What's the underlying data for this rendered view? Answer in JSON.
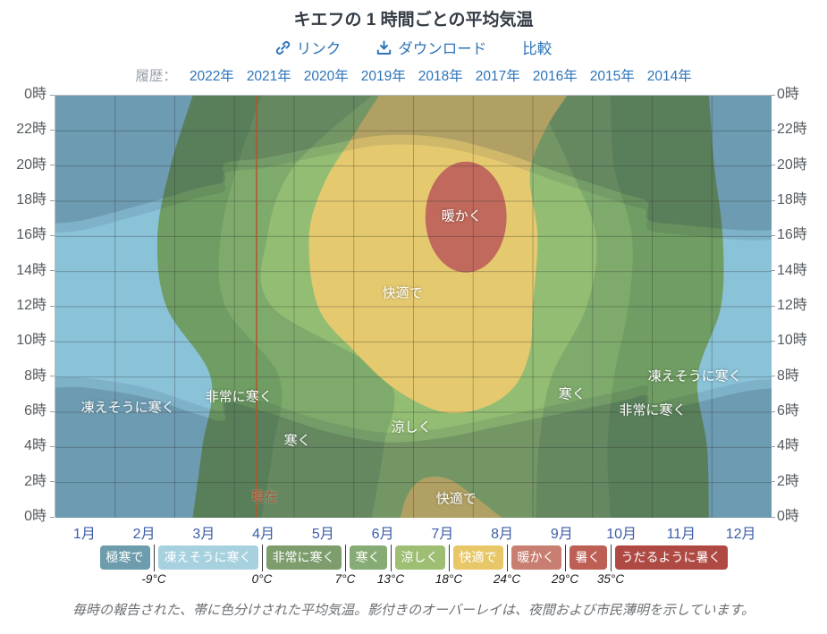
{
  "header": {
    "title": "キエフの 1 時間ごとの平均気温",
    "actions": [
      {
        "label": "リンク",
        "icon": "link-icon"
      },
      {
        "label": "ダウンロード",
        "icon": "download-icon"
      },
      {
        "label": "比較",
        "icon": null
      }
    ]
  },
  "history": {
    "label": "履歴：",
    "years": [
      "2022年",
      "2021年",
      "2020年",
      "2019年",
      "2018年",
      "2017年",
      "2016年",
      "2015年",
      "2014年"
    ]
  },
  "chart_data": {
    "type": "heatmap",
    "title": "キエフの 1 時間ごとの平均気温",
    "x_axis": {
      "unit": "month",
      "range": [
        0,
        12
      ],
      "labels": [
        "1月",
        "2月",
        "3月",
        "4月",
        "5月",
        "6月",
        "7月",
        "8月",
        "9月",
        "10月",
        "11月",
        "12月"
      ]
    },
    "y_axis": {
      "unit": "hour",
      "range": [
        0,
        24
      ],
      "labels_top_to_bottom": [
        "0時",
        "22時",
        "20時",
        "18時",
        "16時",
        "14時",
        "12時",
        "10時",
        "8時",
        "6時",
        "4時",
        "2時",
        "0時"
      ]
    },
    "grid": {
      "vertical_every_month": 1,
      "horizontal_every_hours": 2
    },
    "base_band": {
      "name": "凍えそうに寒く",
      "temp_range_c": "-9–0",
      "color": "#8ac2d8"
    },
    "regions": [
      {
        "name": "非常に寒く",
        "temp_range_c": "0–7",
        "color": "#6f9d63",
        "shape": "band",
        "left": [
          [
            2.3,
            0
          ],
          [
            2.46,
            4
          ],
          [
            2.6,
            8
          ],
          [
            1.86,
            12
          ],
          [
            1.71,
            16
          ],
          [
            1.93,
            20
          ],
          [
            2.3,
            24
          ]
        ],
        "right": [
          [
            10.95,
            0
          ],
          [
            10.92,
            4
          ],
          [
            10.76,
            8
          ],
          [
            11.15,
            12
          ],
          [
            11.18,
            16
          ],
          [
            11.04,
            20
          ],
          [
            10.95,
            24
          ]
        ]
      },
      {
        "name": "寒く",
        "temp_range_c": "7–13",
        "color": "#7eaa6c",
        "shape": "band",
        "left": [
          [
            3.45,
            0
          ],
          [
            3.65,
            4
          ],
          [
            3.75,
            8
          ],
          [
            2.85,
            12
          ],
          [
            2.77,
            16
          ],
          [
            3.05,
            20
          ],
          [
            3.45,
            24
          ]
        ],
        "right": [
          [
            9.3,
            0
          ],
          [
            9.25,
            4
          ],
          [
            9.36,
            8
          ],
          [
            9.6,
            12
          ],
          [
            9.66,
            16
          ],
          [
            9.36,
            20
          ],
          [
            9.3,
            24
          ]
        ]
      },
      {
        "name": "涼しく",
        "temp_range_c": "13–18",
        "color": "#92bd72",
        "shape": "band",
        "left": [
          [
            5.3,
            0
          ],
          [
            5.5,
            4
          ],
          [
            5.55,
            8
          ],
          [
            3.63,
            12
          ],
          [
            3.55,
            16
          ],
          [
            4.0,
            20
          ],
          [
            5.3,
            24
          ]
        ],
        "right": [
          [
            8.05,
            0
          ],
          [
            8.1,
            4
          ],
          [
            8.31,
            8
          ],
          [
            8.9,
            12
          ],
          [
            9.06,
            16
          ],
          [
            8.61,
            20
          ],
          [
            8.05,
            24
          ]
        ]
      },
      {
        "name": "快適で",
        "temp_range_c": "18–24",
        "color": "#e4c96f",
        "shape": "blob-top",
        "points": [
          [
            5.42,
            24
          ],
          [
            4.95,
            21.5
          ],
          [
            4.5,
            19
          ],
          [
            4.25,
            16
          ],
          [
            4.4,
            12
          ],
          [
            5.0,
            9.5
          ],
          [
            5.7,
            7.3
          ],
          [
            6.5,
            6.0
          ],
          [
            7.2,
            6.3
          ],
          [
            7.7,
            7.5
          ],
          [
            7.95,
            9.5
          ],
          [
            8.0,
            12
          ],
          [
            8.08,
            16
          ],
          [
            7.95,
            19.5
          ],
          [
            8.2,
            22
          ],
          [
            8.57,
            24
          ]
        ]
      },
      {
        "name": "快適で(夜)",
        "temp_range_c": "18–24",
        "color": "#e4c96f",
        "shape": "blob-bottom",
        "points": [
          [
            5.78,
            0
          ],
          [
            5.9,
            1.3
          ],
          [
            6.15,
            2.2
          ],
          [
            6.55,
            2.25
          ],
          [
            6.95,
            1.4
          ],
          [
            7.48,
            0
          ]
        ]
      },
      {
        "name": "暖かく",
        "temp_range_c": "24–29",
        "color": "#c0695c",
        "shape": "ellipse",
        "cx": 6.88,
        "cy": 17.1,
        "rx": 0.68,
        "ry": 3.15
      }
    ],
    "sun_overlay": {
      "note": "夜間および市民薄明の影",
      "color": "#1e2c42",
      "twilight_hours": 0.55,
      "sunrise": [
        [
          0,
          7.95
        ],
        [
          0.5,
          7.95
        ],
        [
          1.5,
          7.4
        ],
        [
          2.4,
          6.4
        ],
        [
          2.83,
          6.1
        ],
        [
          2.84,
          7.1
        ],
        [
          3.5,
          6.6
        ],
        [
          4.5,
          5.5
        ],
        [
          5.5,
          4.85
        ],
        [
          6.5,
          5.1
        ],
        [
          7.5,
          5.8
        ],
        [
          8.5,
          6.5
        ],
        [
          9.5,
          7.2
        ],
        [
          9.92,
          7.5
        ],
        [
          9.93,
          6.5
        ],
        [
          10.5,
          6.9
        ],
        [
          11.5,
          7.7
        ],
        [
          12,
          7.9
        ]
      ],
      "sunset": [
        [
          0,
          16.2
        ],
        [
          0.5,
          16.4
        ],
        [
          1.5,
          17.3
        ],
        [
          2.4,
          18.2
        ],
        [
          2.83,
          18.6
        ],
        [
          2.84,
          19.6
        ],
        [
          3.5,
          19.9
        ],
        [
          4.5,
          20.6
        ],
        [
          5.5,
          21.2
        ],
        [
          6.5,
          21.05
        ],
        [
          7.5,
          20.2
        ],
        [
          8.5,
          19.0
        ],
        [
          9.5,
          17.9
        ],
        [
          9.92,
          17.4
        ],
        [
          9.93,
          16.4
        ],
        [
          10.5,
          16.1
        ],
        [
          11.5,
          15.8
        ],
        [
          12,
          15.8
        ]
      ]
    },
    "now_marker": {
      "month": 3.37,
      "label": "現在",
      "line_color": "#b2552c"
    },
    "annotations": [
      {
        "text": "凍えそうに寒く",
        "month": 1.23,
        "hour": 6.25
      },
      {
        "text": "非常に寒く",
        "month": 3.09,
        "hour": 6.86
      },
      {
        "text": "寒く",
        "month": 4.07,
        "hour": 4.37
      },
      {
        "text": "涼しく",
        "month": 5.98,
        "hour": 5.14
      },
      {
        "text": "快適で",
        "month": 6.73,
        "hour": 1.07
      },
      {
        "text": "快適で",
        "month": 5.83,
        "hour": 12.76
      },
      {
        "text": "暖かく",
        "month": 6.82,
        "hour": 17.14
      },
      {
        "text": "寒く",
        "month": 8.67,
        "hour": 7.02
      },
      {
        "text": "非常に寒く",
        "month": 10.02,
        "hour": 6.1
      },
      {
        "text": "凍えそうに寒く",
        "month": 10.73,
        "hour": 8.03
      }
    ]
  },
  "legend": {
    "items": [
      {
        "label": "極寒で",
        "color": "#6d9dad",
        "temp_left": null
      },
      {
        "label": "凍えそうに寒く",
        "color": "#a7d1df",
        "temp_left": "-9°C"
      },
      {
        "label": "非常に寒く",
        "color": "#7d9d6d",
        "temp_left": "0°C"
      },
      {
        "label": "寒く",
        "color": "#86ab74",
        "temp_left": "7°C"
      },
      {
        "label": "涼しく",
        "color": "#9dbe73",
        "temp_left": "13°C"
      },
      {
        "label": "快適で",
        "color": "#e7c768",
        "temp_left": "18°C"
      },
      {
        "label": "暖かく",
        "color": "#c87f72",
        "temp_left": "24°C"
      },
      {
        "label": "暑く",
        "color": "#bd5f55",
        "temp_left": "29°C"
      },
      {
        "label": "うだるように暑く",
        "color": "#ae4a43",
        "temp_left": "35°C"
      }
    ]
  },
  "caption": {
    "text": "毎時の報告された、帯に色分けされた平均気温。影付きのオーバーレイは、夜間および市民薄明を示しています。"
  }
}
